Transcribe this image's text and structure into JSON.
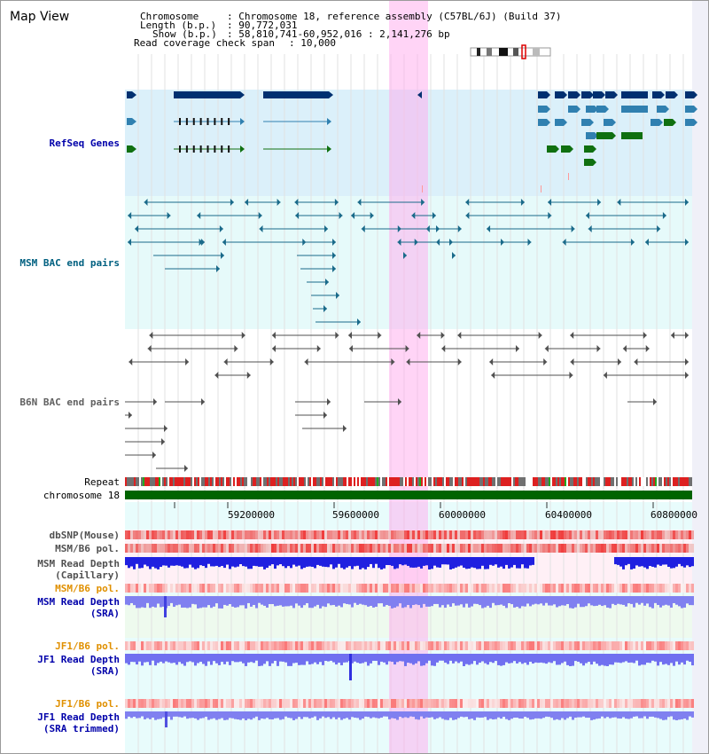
{
  "page_title": "Map View",
  "header": {
    "chromosome_key": "Chromosome",
    "chromosome_val": ": Chromosome 18, reference assembly (C57BL/6J) (Build 37)",
    "length_key": "Length (b.p.)",
    "length_val": ": 90,772,031",
    "show_key": "Show (b.p.)",
    "show_val": ": 58,810,741-60,952,016 : 2,141,276 bp",
    "span_key": "Read coverage check span",
    "span_val": ": 10,000"
  },
  "tracks": {
    "refseq": "RefSeq Genes",
    "msm_bac": "MSM BAC end pairs",
    "b6n_bac": "B6N BAC end pairs",
    "repeat": "Repeat",
    "chromosome": "chromosome 18",
    "dbsnp": "dbSNP(Mouse)",
    "msm_b6_pol_1": "MSM/B6 pol.",
    "msm_depth_cap_1": "MSM Read Depth",
    "msm_depth_cap_2": "(Capillary)",
    "msm_b6_pol_2": "MSM/B6 pol.",
    "msm_depth_sra_1": "MSM Read Depth",
    "msm_depth_sra_2": "(SRA)",
    "jf1_b6_pol_1": "JF1/B6 pol.",
    "jf1_depth_sra_1": "JF1 Read Depth",
    "jf1_depth_sra_2": "(SRA)",
    "jf1_b6_pol_2": "JF1/B6 pol.",
    "jf1_depth_trim_1": "JF1 Read Depth",
    "jf1_depth_trim_2": "(SRA trimmed)"
  },
  "axis_ticks": [
    "59200000",
    "59600000",
    "60000000",
    "60400000",
    "60800000"
  ],
  "colors": {
    "refseq_label": "#0000aa",
    "msm_label": "#006080",
    "b6n_label": "#606060",
    "orange_label": "#e09000",
    "blue_label": "#0000aa",
    "highlight": "#ffaaee",
    "chromosome_bar": "#006400"
  }
}
